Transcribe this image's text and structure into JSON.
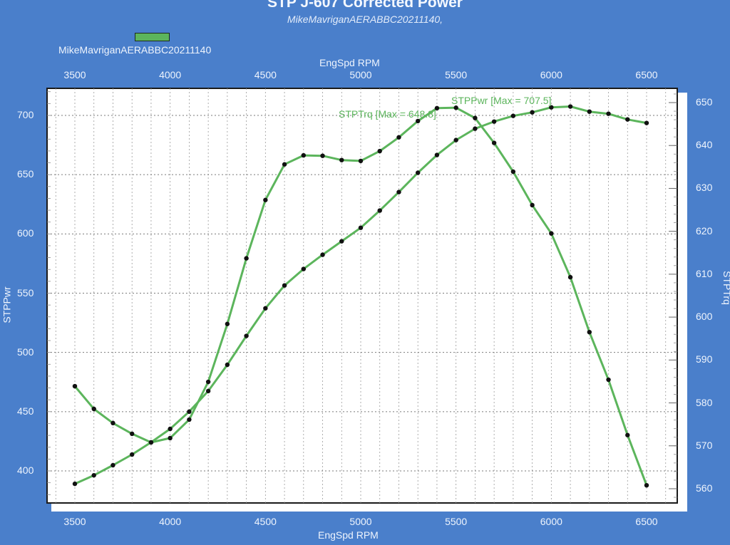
{
  "header": {
    "title": "STP J-607 Corrected Power",
    "subtitle": "MikeMavriganAERABBC20211140,"
  },
  "legend": {
    "label": "MikeMavriganAERABBC20211140",
    "color": "#5cb55c"
  },
  "axes": {
    "x_title_top": "EngSpd RPM",
    "x_title_bottom": "EngSpd RPM",
    "y_left_title": "STPPwr",
    "y_right_title": "STPTrq",
    "x_ticks": [
      "3500",
      "4000",
      "4500",
      "5000",
      "5500",
      "6000",
      "6500"
    ],
    "y_left_ticks": [
      "700",
      "650",
      "600",
      "550",
      "500",
      "450",
      "400"
    ],
    "y_right_ticks": [
      "650",
      "640",
      "630",
      "620",
      "610",
      "600",
      "590",
      "580",
      "570",
      "560"
    ]
  },
  "annotations": {
    "power_max": "STPPwr [Max = 707.5]",
    "torque_max": "STPTrq [Max = 648.8]"
  },
  "colors": {
    "background": "#4a7fcb",
    "plot_bg": "#ffffff",
    "line": "#5cb55c",
    "marker": "#111111",
    "annotation": "#5cb55c"
  },
  "chart_data": {
    "type": "line",
    "title": "STP J-607 Corrected Power",
    "subtitle": "MikeMavriganAERABBC20211140,",
    "xlabel": "EngSpd RPM",
    "ylabel": "STPPwr",
    "y2label": "STPTrq",
    "xlim": [
      3350,
      6650
    ],
    "ylim": [
      373,
      723
    ],
    "y2lim": [
      556.6,
      652.9
    ],
    "grid": true,
    "legend_position": "top-left",
    "x": [
      3500,
      3600,
      3700,
      3800,
      3900,
      4000,
      4100,
      4200,
      4300,
      4400,
      4500,
      4600,
      4700,
      4800,
      4900,
      5000,
      5100,
      5200,
      5300,
      5400,
      5500,
      5600,
      5700,
      5800,
      5900,
      6000,
      6100,
      6200,
      6300,
      6400,
      6500
    ],
    "series": [
      {
        "name": "STPPwr",
        "axis": "left",
        "max_label": "STPPwr [Max = 707.5]",
        "values": [
          389.1,
          396.3,
          404.8,
          413.8,
          424.1,
          435.5,
          450.0,
          467.4,
          489.6,
          513.9,
          537.2,
          556.5,
          570.4,
          582.4,
          593.8,
          605.2,
          619.7,
          635.3,
          651.6,
          666.6,
          679.2,
          688.8,
          694.8,
          699.6,
          702.6,
          706.8,
          707.5,
          703.2,
          701.4,
          696.6,
          693.6
        ]
      },
      {
        "name": "STPTrq",
        "axis": "right",
        "max_label": "STPTrq [Max = 648.8]",
        "values": [
          583.9,
          578.6,
          575.3,
          572.8,
          570.8,
          571.8,
          576.1,
          584.9,
          598.4,
          613.7,
          627.3,
          635.6,
          637.7,
          637.6,
          636.6,
          636.4,
          638.7,
          641.9,
          645.7,
          648.7,
          648.8,
          646.4,
          640.6,
          633.9,
          626.1,
          619.5,
          609.3,
          596.5,
          585.4,
          572.5,
          560.8
        ]
      }
    ]
  }
}
